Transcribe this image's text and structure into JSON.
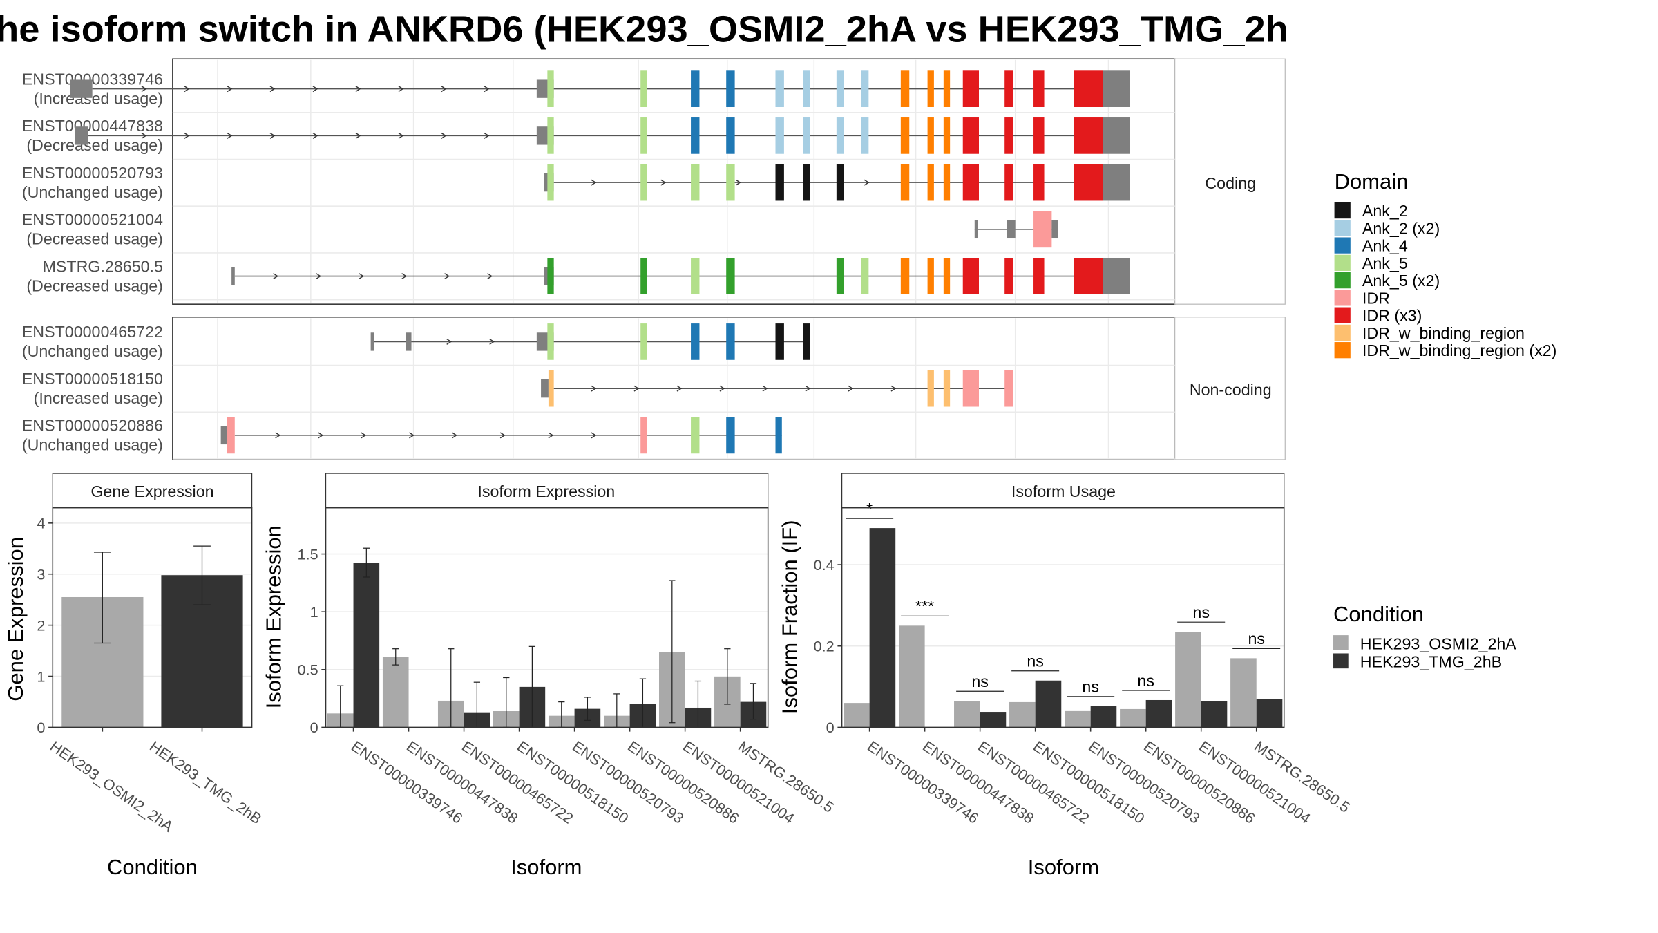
{
  "title": "he isoform switch in ANKRD6 (HEK293_OSMI2_2hA vs HEK293_TMG_2h",
  "colors": {
    "Ank_2": "#151515",
    "Ank_2 (x2)": "#a6cee3",
    "Ank_4": "#1f78b4",
    "Ank_5": "#b2df8a",
    "Ank_5 (x2)": "#33a02c",
    "IDR": "#fb9a99",
    "IDR (x3)": "#e31a1c",
    "IDR_w_binding_region": "#fdbf6f",
    "IDR_w_binding_region (x2)": "#ff7f00",
    "exon": "#7f7f7f",
    "cond_a": "#a9a9a9",
    "cond_b": "#333333"
  },
  "transcripts": {
    "strip_labels": [
      "Coding",
      "Non-coding"
    ],
    "coding": [
      {
        "id": "ENST00000339746",
        "usage": "(Increased usage)",
        "segments": [
          [
            65,
            86
          ],
          [
            501,
            517
          ],
          [
            517,
            1050,
            "intron"
          ],
          [
            511,
            517,
            "Ank_5"
          ],
          [
            598,
            604,
            "Ank_5"
          ],
          [
            645,
            653,
            "Ank_4"
          ],
          [
            678,
            686,
            "Ank_4"
          ],
          [
            724,
            732,
            "Ank_2 (x2)"
          ],
          [
            750,
            756,
            "Ank_2 (x2)"
          ],
          [
            781,
            788,
            "Ank_2 (x2)"
          ],
          [
            804,
            811,
            "Ank_2 (x2)"
          ],
          [
            841,
            849,
            "IDR_w_binding_region (x2)"
          ],
          [
            866,
            872,
            "IDR_w_binding_region (x2)"
          ],
          [
            881,
            887,
            "IDR_w_binding_region (x2)"
          ],
          [
            899,
            914,
            "IDR (x3)"
          ],
          [
            938,
            946,
            "IDR (x3)"
          ],
          [
            965,
            975,
            "IDR (x3)"
          ],
          [
            1003,
            1030,
            "IDR (x3)"
          ],
          [
            1030,
            1055,
            "exon"
          ]
        ],
        "intron": [
          86,
          1050
        ],
        "arrows": [
          135,
          175,
          215,
          255,
          295,
          335,
          375,
          415,
          455
        ]
      },
      {
        "id": "ENST00000447838",
        "usage": "(Decreased usage)",
        "segments": [
          [
            70,
            82
          ],
          [
            501,
            517
          ],
          [
            511,
            517,
            "Ank_5"
          ],
          [
            598,
            604,
            "Ank_5"
          ],
          [
            645,
            653,
            "Ank_4"
          ],
          [
            678,
            686,
            "Ank_4"
          ],
          [
            724,
            732,
            "Ank_2 (x2)"
          ],
          [
            750,
            756,
            "Ank_2 (x2)"
          ],
          [
            781,
            788,
            "Ank_2 (x2)"
          ],
          [
            804,
            811,
            "Ank_2 (x2)"
          ],
          [
            841,
            849,
            "IDR_w_binding_region (x2)"
          ],
          [
            866,
            872,
            "IDR_w_binding_region (x2)"
          ],
          [
            881,
            887,
            "IDR_w_binding_region (x2)"
          ],
          [
            899,
            914,
            "IDR (x3)"
          ],
          [
            938,
            946,
            "IDR (x3)"
          ],
          [
            965,
            975,
            "IDR (x3)"
          ],
          [
            1003,
            1030,
            "IDR (x3)"
          ],
          [
            1030,
            1055,
            "exon"
          ]
        ],
        "intron": [
          82,
          1050
        ],
        "arrows": [
          135,
          175,
          215,
          255,
          295,
          335,
          375,
          415,
          455
        ]
      },
      {
        "id": "ENST00000520793",
        "usage": "(Unchanged usage)",
        "segments": [
          [
            508,
            517
          ],
          [
            511,
            517,
            "Ank_5"
          ],
          [
            598,
            604,
            "Ank_5"
          ],
          [
            645,
            653,
            "Ank_5"
          ],
          [
            678,
            686,
            "Ank_5"
          ],
          [
            724,
            732,
            "Ank_2"
          ],
          [
            750,
            756,
            "Ank_2"
          ],
          [
            781,
            788,
            "Ank_2"
          ],
          [
            841,
            849,
            "IDR_w_binding_region (x2)"
          ],
          [
            866,
            872,
            "IDR_w_binding_region (x2)"
          ],
          [
            881,
            887,
            "IDR_w_binding_region (x2)"
          ],
          [
            899,
            914,
            "IDR (x3)"
          ],
          [
            938,
            946,
            "IDR (x3)"
          ],
          [
            965,
            975,
            "IDR (x3)"
          ],
          [
            1003,
            1030,
            "IDR (x3)"
          ],
          [
            1030,
            1055,
            "exon"
          ]
        ],
        "intron": [
          517,
          1050
        ],
        "arrows": [
          555,
          620,
          690,
          810
        ]
      },
      {
        "id": "ENST00000521004",
        "usage": "(Decreased usage)",
        "segments": [
          [
            910,
            913
          ],
          [
            940,
            948
          ],
          [
            965,
            982,
            "IDR"
          ],
          [
            982,
            988
          ]
        ],
        "intron": [
          910,
          988
        ],
        "arrows": []
      },
      {
        "id": "MSTRG.28650.5",
        "usage": "(Decreased usage)",
        "segments": [
          [
            216,
            219
          ],
          [
            508,
            517
          ],
          [
            511,
            517,
            "Ank_5 (x2)"
          ],
          [
            598,
            604,
            "Ank_5 (x2)"
          ],
          [
            645,
            653,
            "Ank_5"
          ],
          [
            678,
            686,
            "Ank_5 (x2)"
          ],
          [
            781,
            788,
            "Ank_5 (x2)"
          ],
          [
            804,
            811,
            "Ank_5"
          ],
          [
            841,
            849,
            "IDR_w_binding_region (x2)"
          ],
          [
            866,
            872,
            "IDR_w_binding_region (x2)"
          ],
          [
            881,
            887,
            "IDR_w_binding_region (x2)"
          ],
          [
            899,
            914,
            "IDR (x3)"
          ],
          [
            938,
            946,
            "IDR (x3)"
          ],
          [
            965,
            975,
            "IDR (x3)"
          ],
          [
            1003,
            1030,
            "IDR (x3)"
          ],
          [
            1030,
            1055,
            "exon"
          ]
        ],
        "intron": [
          219,
          1050
        ],
        "arrows": [
          258,
          298,
          338,
          378,
          418,
          458
        ]
      }
    ],
    "noncoding": [
      {
        "id": "ENST00000465722",
        "usage": "(Unchanged usage)",
        "segments": [
          [
            346,
            349
          ],
          [
            379,
            384
          ],
          [
            501,
            517
          ],
          [
            511,
            517,
            "Ank_5"
          ],
          [
            598,
            604,
            "Ank_5"
          ],
          [
            645,
            653,
            "Ank_4"
          ],
          [
            678,
            686,
            "Ank_4"
          ],
          [
            724,
            732,
            "Ank_2"
          ],
          [
            750,
            756,
            "Ank_2"
          ]
        ],
        "intron": [
          349,
          756
        ],
        "arrows": [
          420,
          460
        ]
      },
      {
        "id": "ENST00000518150",
        "usage": "(Increased usage)",
        "segments": [
          [
            505,
            512
          ],
          [
            512,
            517,
            "IDR_w_binding_region"
          ],
          [
            866,
            872,
            "IDR_w_binding_region"
          ],
          [
            881,
            887,
            "IDR_w_binding_region"
          ],
          [
            899,
            914,
            "IDR"
          ],
          [
            938,
            946,
            "IDR"
          ]
        ],
        "intron": [
          517,
          946
        ],
        "arrows": [
          555,
          595,
          635,
          675,
          715,
          755,
          795,
          835
        ]
      },
      {
        "id": "ENST00000520886",
        "usage": "(Unchanged usage)",
        "segments": [
          [
            206,
            212
          ],
          [
            212,
            219,
            "IDR"
          ],
          [
            598,
            604,
            "IDR"
          ],
          [
            645,
            653,
            "Ank_5"
          ],
          [
            678,
            686,
            "Ank_4"
          ],
          [
            724,
            730,
            "Ank_4"
          ]
        ],
        "intron": [
          219,
          730
        ],
        "arrows": [
          260,
          300,
          340,
          385,
          425,
          470,
          515,
          555
        ]
      }
    ]
  },
  "legend": {
    "domain_title": "Domain",
    "domain_items": [
      "Ank_2",
      "Ank_2 (x2)",
      "Ank_4",
      "Ank_5",
      "Ank_5 (x2)",
      "IDR",
      "IDR (x3)",
      "IDR_w_binding_region",
      "IDR_w_binding_region (x2)"
    ],
    "condition_title": "Condition",
    "condition_items": [
      "HEK293_OSMI2_2hA",
      "HEK293_TMG_2hB"
    ]
  },
  "chart_data": [
    {
      "type": "bar",
      "strip": "Gene Expression",
      "xlabel": "Condition",
      "ylabel": "Gene Expression",
      "ylim": [
        0,
        4.3
      ],
      "yticks": [
        0,
        1,
        2,
        3,
        4
      ],
      "categories": [
        "HEK293_OSMI2_2hA",
        "HEK293_TMG_2hB"
      ],
      "values": [
        2.55,
        2.98
      ],
      "err_low": [
        1.65,
        2.4
      ],
      "err_high": [
        3.43,
        3.55
      ]
    },
    {
      "type": "bar",
      "strip": "Isoform Expression",
      "xlabel": "Isoform",
      "ylabel": "Isoform Expression",
      "ylim": [
        0,
        1.9
      ],
      "yticks": [
        0.0,
        0.5,
        1.0,
        1.5
      ],
      "categories": [
        "ENST00000339746",
        "ENST00000447838",
        "ENST00000465722",
        "ENST00000518150",
        "ENST00000520793",
        "ENST00000520886",
        "ENST00000521004",
        "MSTRG.28650.5"
      ],
      "series": [
        {
          "name": "HEK293_OSMI2_2hA",
          "values": [
            0.12,
            0.61,
            0.23,
            0.14,
            0.1,
            0.1,
            0.65,
            0.44
          ],
          "err_low": [
            0.0,
            0.54,
            0.0,
            0.0,
            0.0,
            0.0,
            0.04,
            0.2
          ],
          "err_high": [
            0.36,
            0.68,
            0.68,
            0.43,
            0.22,
            0.29,
            1.27,
            0.68
          ]
        },
        {
          "name": "HEK293_TMG_2hB",
          "values": [
            1.42,
            0.0,
            0.13,
            0.35,
            0.16,
            0.2,
            0.17,
            0.22
          ],
          "err_low": [
            1.3,
            0.0,
            0.0,
            0.0,
            0.06,
            0.0,
            0.0,
            0.07
          ],
          "err_high": [
            1.55,
            0.0,
            0.39,
            0.7,
            0.26,
            0.42,
            0.4,
            0.38
          ]
        }
      ]
    },
    {
      "type": "bar",
      "strip": "Isoform Usage",
      "xlabel": "Isoform",
      "ylabel": "Isoform Fraction (IF)",
      "ylim": [
        0,
        0.54
      ],
      "yticks": [
        0.0,
        0.2,
        0.4
      ],
      "categories": [
        "ENST00000339746",
        "ENST00000447838",
        "ENST00000465722",
        "ENST00000518150",
        "ENST00000520793",
        "ENST00000520886",
        "ENST00000521004",
        "MSTRG.28650.5"
      ],
      "series": [
        {
          "name": "HEK293_OSMI2_2hA",
          "values": [
            0.06,
            0.25,
            0.065,
            0.062,
            0.04,
            0.045,
            0.235,
            0.17
          ]
        },
        {
          "name": "HEK293_TMG_2hB",
          "values": [
            0.49,
            0.0,
            0.038,
            0.115,
            0.052,
            0.067,
            0.065,
            0.07
          ]
        }
      ],
      "significance": [
        "*",
        "***",
        "ns",
        "ns",
        "ns",
        "ns",
        "ns",
        "ns"
      ]
    }
  ]
}
